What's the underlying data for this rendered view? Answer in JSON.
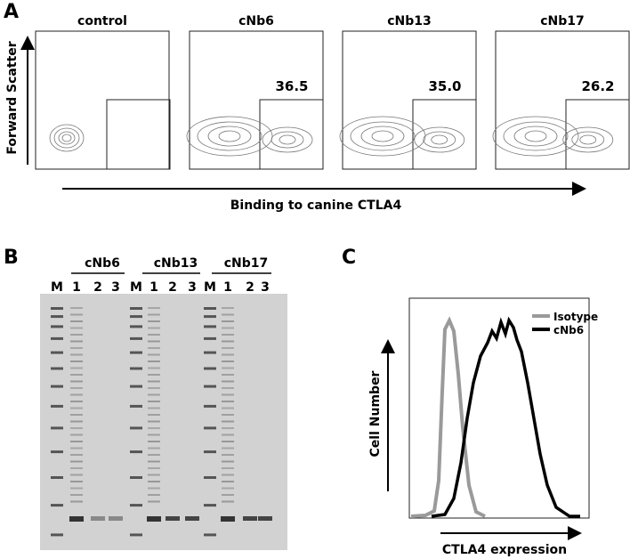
{
  "panel_a": {
    "label": "A",
    "y_axis_label": "Forward Scatter",
    "x_axis_label": "Binding to canine CTLA4",
    "plots": [
      {
        "title": "control"
      },
      {
        "title": "cNb6",
        "gate_value": "36.5"
      },
      {
        "title": "cNb13",
        "gate_value": "35.0"
      },
      {
        "title": "cNb17",
        "gate_value": "26.2"
      }
    ]
  },
  "panel_b": {
    "label": "B",
    "groups": [
      "cNb6",
      "cNb13",
      "cNb17"
    ],
    "lanes": [
      "M",
      "1",
      "2",
      "3",
      "M",
      "1",
      "2",
      "3",
      "M",
      "1",
      "2",
      "3"
    ]
  },
  "panel_c": {
    "label": "C",
    "y_axis_label": "Cell Number",
    "x_axis_label": "CTLA4 expression",
    "legend": [
      "Isotype",
      "cNb6"
    ]
  }
}
